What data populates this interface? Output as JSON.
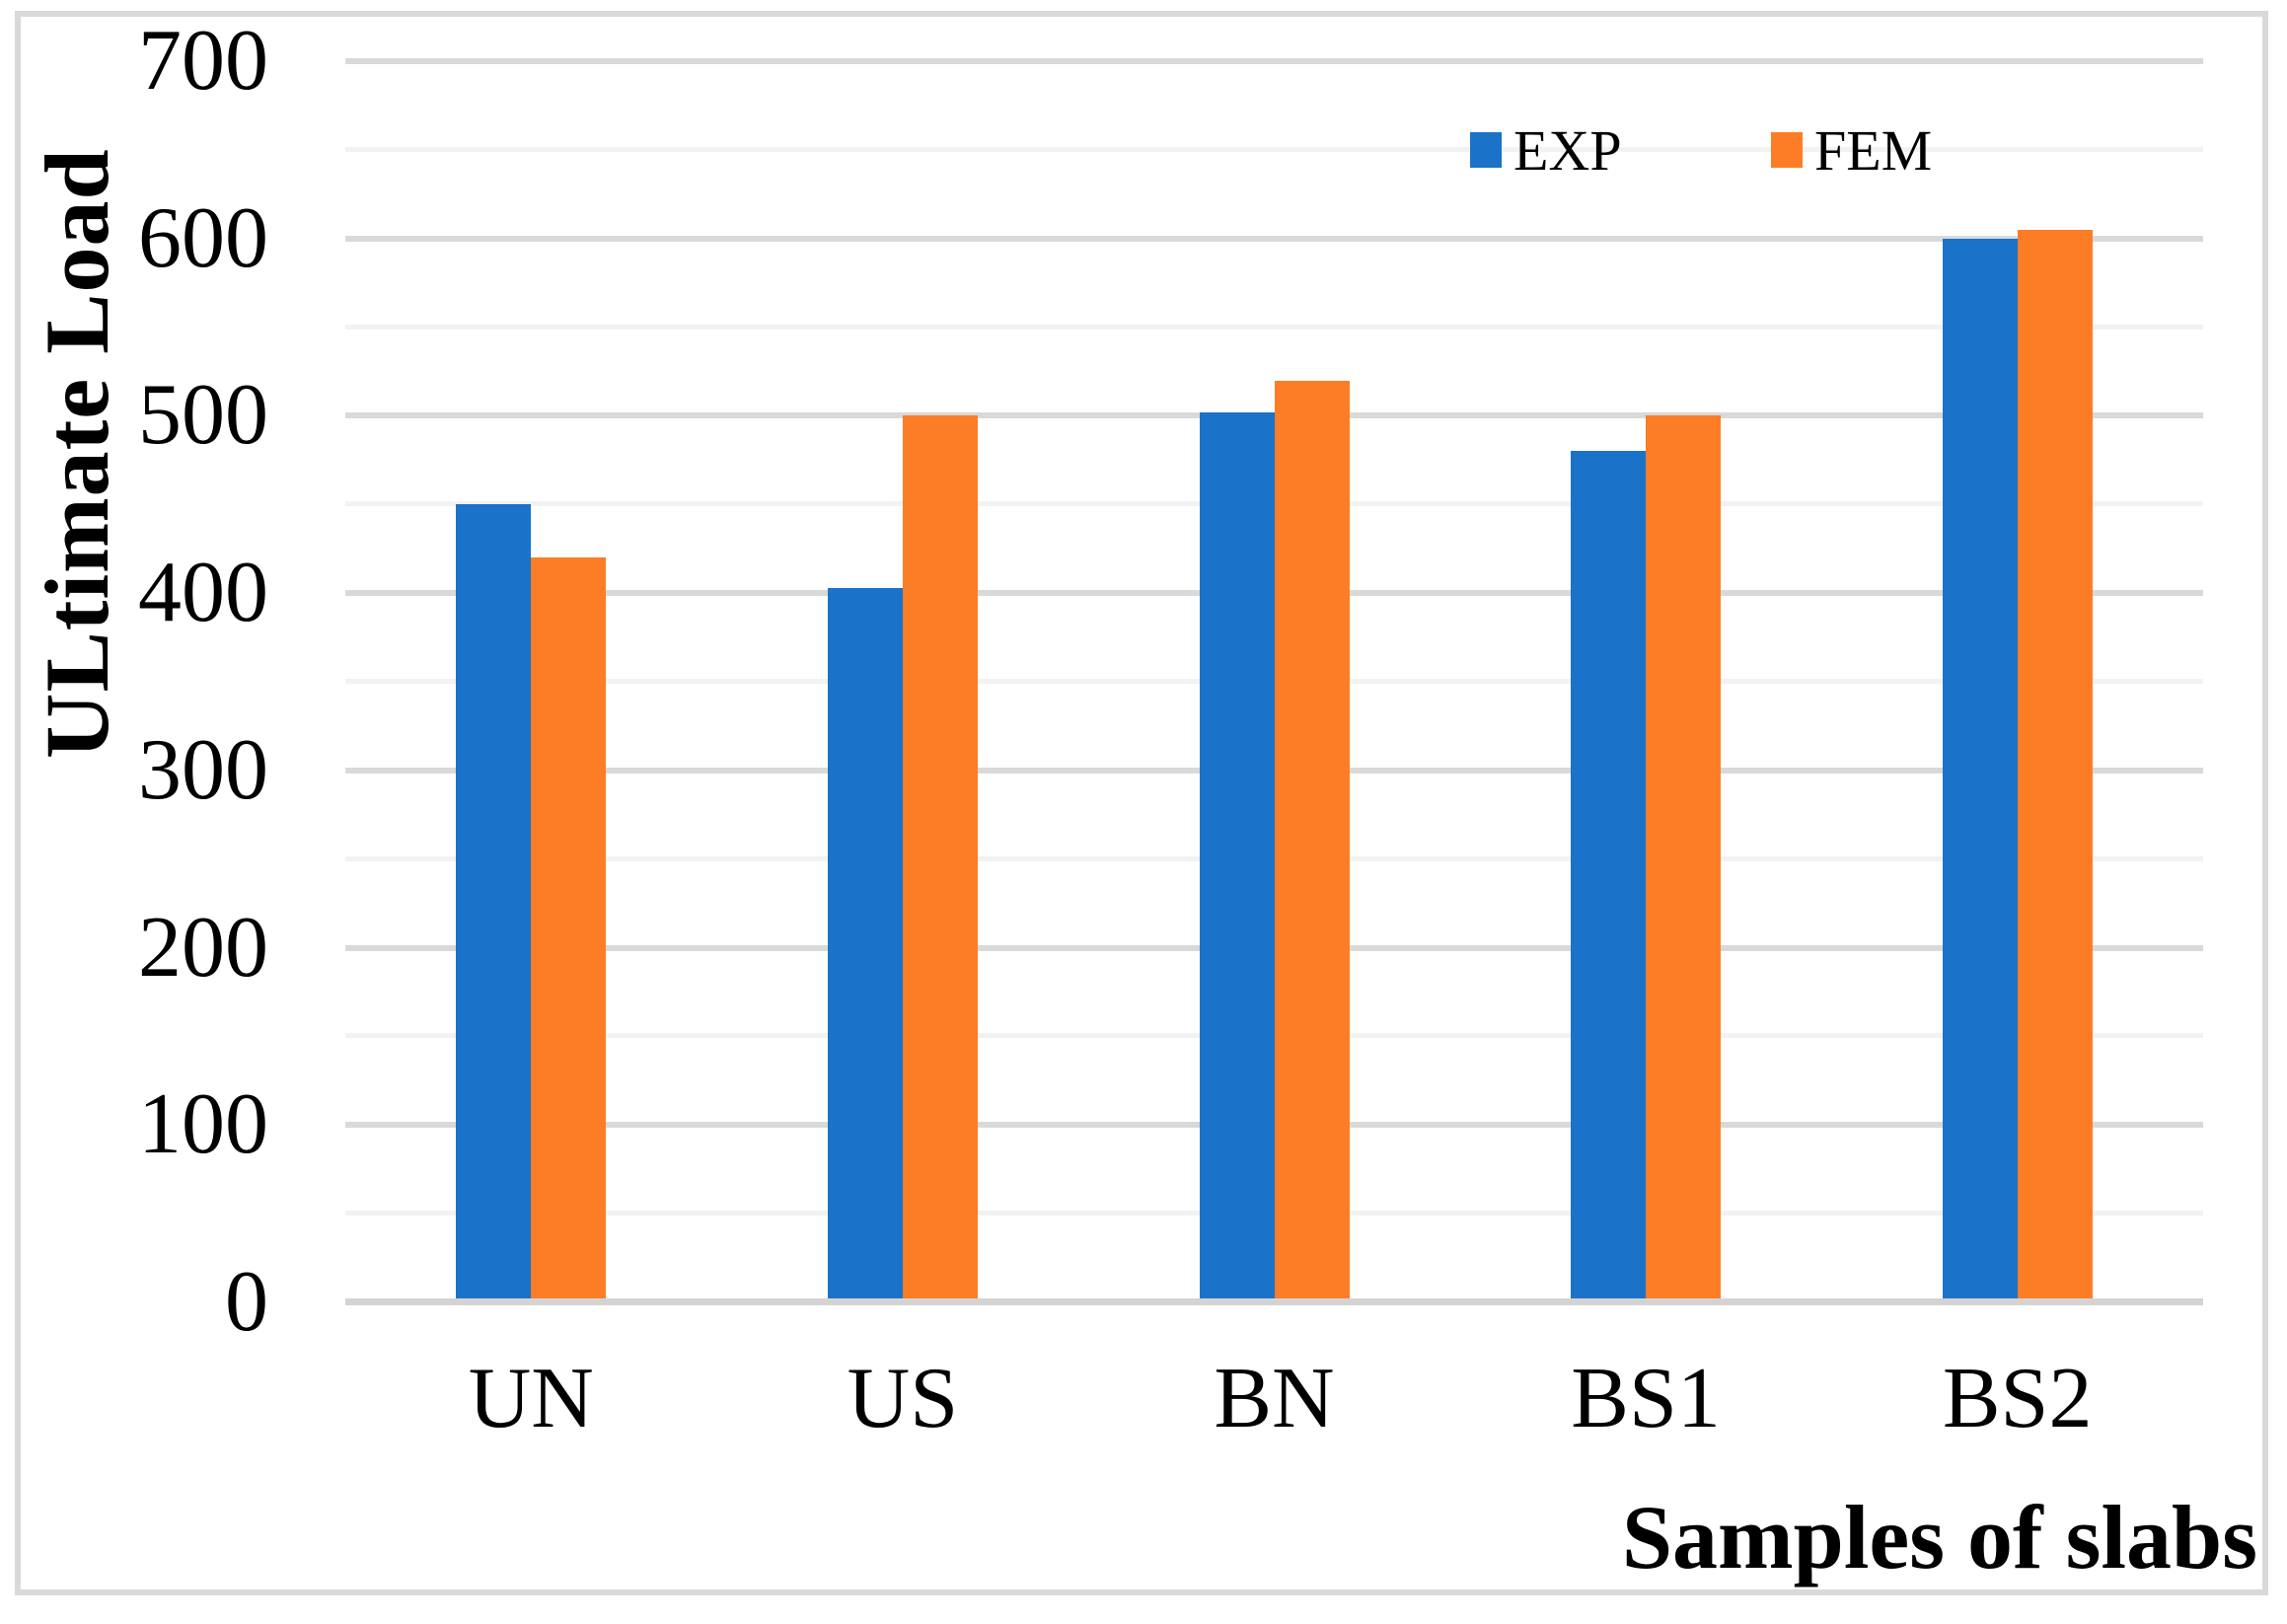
{
  "chart_data": {
    "type": "bar",
    "title": "",
    "categories": [
      "UN",
      "US",
      "BN",
      "BS1",
      "BS2"
    ],
    "series": [
      {
        "name": "EXP",
        "color": "#1A73C8",
        "values": [
          450,
          403,
          502,
          480,
          600
        ]
      },
      {
        "name": "FEM",
        "color": "#FC7D26",
        "values": [
          420,
          500,
          520,
          500,
          605
        ]
      }
    ],
    "xlabel": "Samples of slabs",
    "ylabel": "ULtimate Load",
    "ylim": [
      0,
      700
    ],
    "y_ticks": [
      0,
      100,
      200,
      300,
      400,
      500,
      600,
      700
    ],
    "y_minor_step": 50,
    "grid": "horizontal major and minor gridlines",
    "legend_position": "top-right inside plot"
  },
  "colors": {
    "major_grid": "#d9d9d9",
    "minor_grid": "#f2f2f2",
    "axis_line": "#d3d3d3",
    "border": "#d9d9d9",
    "background": "#ffffff",
    "text": "#000000"
  }
}
